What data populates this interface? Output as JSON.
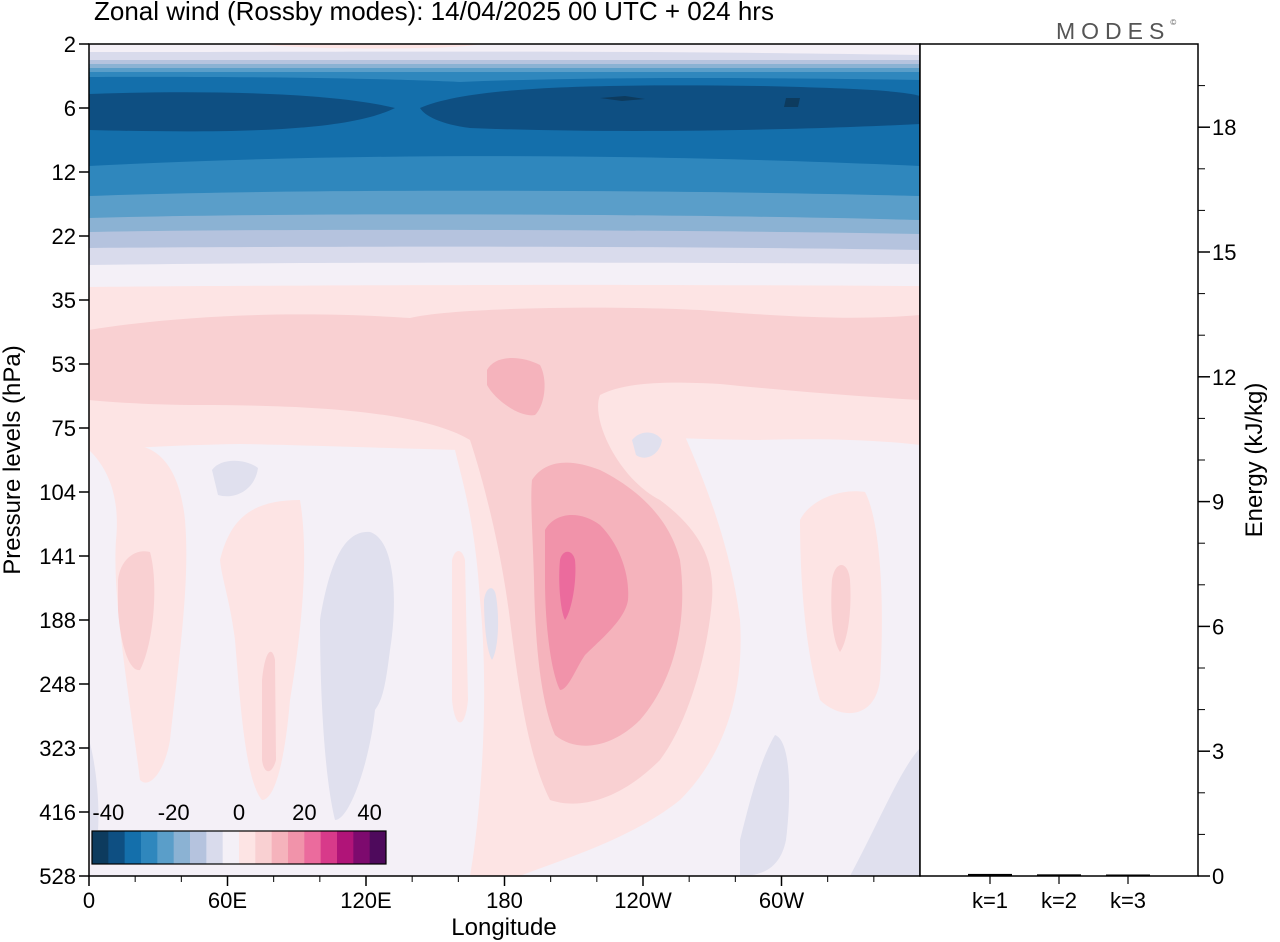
{
  "title": "Zonal wind (Rossby modes):  14/04/2025  00 UTC  + 024 hrs",
  "logo": "MODES",
  "logo_mark": "©",
  "chart_data": [
    {
      "type": "heatmap",
      "variable": "Zonal wind (Rossby modes)",
      "xlabel": "Longitude",
      "ylabel": "Pressure levels (hPa)",
      "x_tick_labels": [
        "0",
        "60E",
        "120E",
        "180",
        "120W",
        "60W"
      ],
      "x_ticks_deg": [
        0,
        60,
        120,
        180,
        240,
        300
      ],
      "xlim_deg": [
        0,
        360
      ],
      "y_tick_labels": [
        "2",
        "6",
        "12",
        "22",
        "35",
        "53",
        "75",
        "104",
        "141",
        "188",
        "248",
        "323",
        "416",
        "528"
      ],
      "y_scale": "categorical pressure levels, 2 hPa at top",
      "colorbar": {
        "tick_labels": [
          "-40",
          "-20",
          "0",
          "20",
          "40"
        ],
        "range": [
          -45,
          45
        ],
        "step": 5,
        "colors": [
          "#0d3b5e",
          "#0e4f82",
          "#146fab",
          "#2f87bd",
          "#5a9ec9",
          "#8bb2d3",
          "#b5c3de",
          "#d9dbec",
          "#f4f0f7",
          "#fde4e4",
          "#f9d0d2",
          "#f5b3bc",
          "#f193aa",
          "#eb6b9d",
          "#d83a8a",
          "#b01478",
          "#7d0a6e",
          "#4e0a5c"
        ]
      },
      "field_summary": [
        {
          "levels_hPa": "2",
          "zonal_wind_ms": [
            -10,
            0
          ]
        },
        {
          "levels_hPa": "4-14",
          "zonal_wind_ms": [
            -45,
            -30
          ],
          "note": "strongest easterlies near 6 hPa, 160W-40W"
        },
        {
          "levels_hPa": "14-22",
          "zonal_wind_ms": [
            -25,
            -10
          ]
        },
        {
          "levels_hPa": "22-30",
          "zonal_wind_ms": [
            -10,
            0
          ]
        },
        {
          "levels_hPa": "30-70",
          "zonal_wind_ms": [
            0,
            10
          ],
          "note": "local maximum 10-15 near 160W, 53 hPa"
        },
        {
          "levels_hPa": "75-528",
          "zonal_wind_ms": [
            -5,
            5
          ],
          "note": "jet core 20-25 at 141-188 hPa near 160W"
        }
      ]
    },
    {
      "type": "bar",
      "ylabel": "Energy (kJ/kg)",
      "categories": [
        "k=1",
        "k=2",
        "k=3"
      ],
      "values": [
        0.05,
        0.04,
        0.03
      ],
      "ylim": [
        0,
        20
      ],
      "y_tick_labels": [
        "0",
        "3",
        "6",
        "9",
        "12",
        "15",
        "18"
      ],
      "y_ticks": [
        0,
        3,
        6,
        9,
        12,
        15,
        18
      ]
    }
  ]
}
